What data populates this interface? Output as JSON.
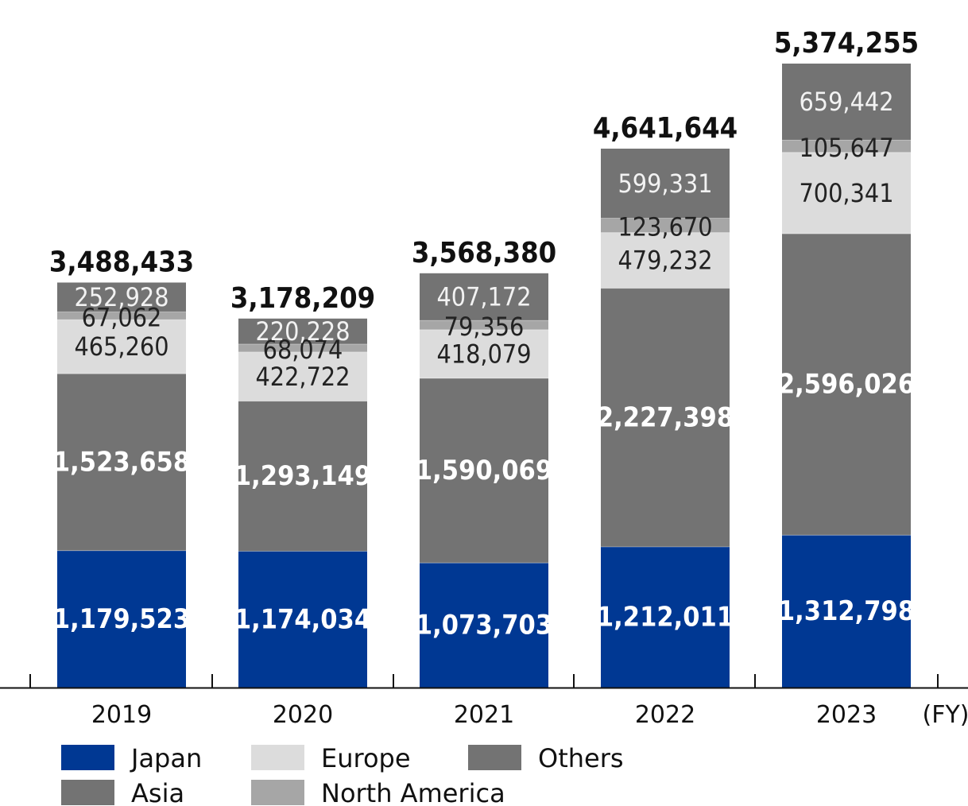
{
  "chart_data": {
    "type": "bar",
    "stacked": true,
    "categories": [
      "2019",
      "2020",
      "2021",
      "2022",
      "2023"
    ],
    "x_unit_label": "(FY)",
    "series": [
      {
        "name": "Japan",
        "color": "#003893",
        "values": [
          1179523,
          1174034,
          1073703,
          1212011,
          1312798
        ]
      },
      {
        "name": "Asia",
        "color": "#737373",
        "values": [
          1523658,
          1293149,
          1590069,
          2227398,
          2596026
        ]
      },
      {
        "name": "Europe",
        "color": "#dcdcdc",
        "values": [
          465260,
          422722,
          418079,
          479232,
          700341
        ]
      },
      {
        "name": "North America",
        "color": "#a6a6a6",
        "values": [
          67062,
          68074,
          79356,
          123670,
          105647
        ]
      },
      {
        "name": "Others",
        "color": "#737373",
        "values": [
          252928,
          220228,
          407172,
          599331,
          659442
        ]
      }
    ],
    "totals": [
      3488433,
      3178209,
      3568380,
      4641644,
      5374255
    ],
    "legend_position": "bottom-left",
    "grid": false
  }
}
